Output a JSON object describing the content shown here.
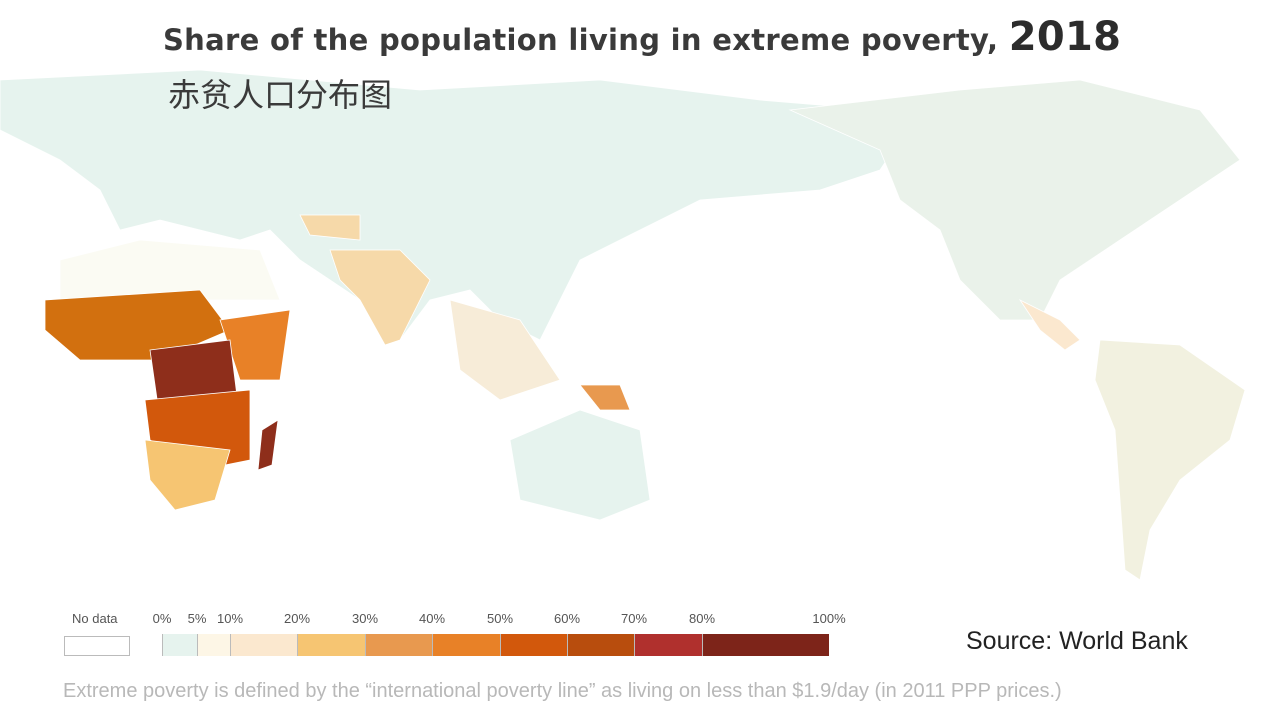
{
  "title": {
    "text": "Share of the population living in extreme poverty,",
    "year": "2018"
  },
  "subtitle": "赤贫人口分布图",
  "legend": {
    "no_data_label": "No data",
    "no_data_color": "#ffffff",
    "tick_labels": [
      "0%",
      "5%",
      "10%",
      "20%",
      "30%",
      "40%",
      "50%",
      "60%",
      "70%",
      "80%",
      "100%"
    ],
    "bins": [
      {
        "from": 0,
        "to": 5,
        "color": "#e6f3ee"
      },
      {
        "from": 5,
        "to": 10,
        "color": "#fdf6e6"
      },
      {
        "from": 10,
        "to": 20,
        "color": "#fbe8cf"
      },
      {
        "from": 20,
        "to": 30,
        "color": "#f6c572"
      },
      {
        "from": 30,
        "to": 40,
        "color": "#e8994f"
      },
      {
        "from": 40,
        "to": 50,
        "color": "#e88127"
      },
      {
        "from": 50,
        "to": 60,
        "color": "#d2580c"
      },
      {
        "from": 60,
        "to": 70,
        "color": "#b84d0d"
      },
      {
        "from": 70,
        "to": 80,
        "color": "#b0302d"
      },
      {
        "from": 80,
        "to": 100,
        "color": "#7d2419"
      }
    ]
  },
  "source": "Source: World Bank",
  "footnote": "Extreme poverty is defined by the “international poverty line” as living on less than $1.9/day (in 2011 PPP prices.)"
}
